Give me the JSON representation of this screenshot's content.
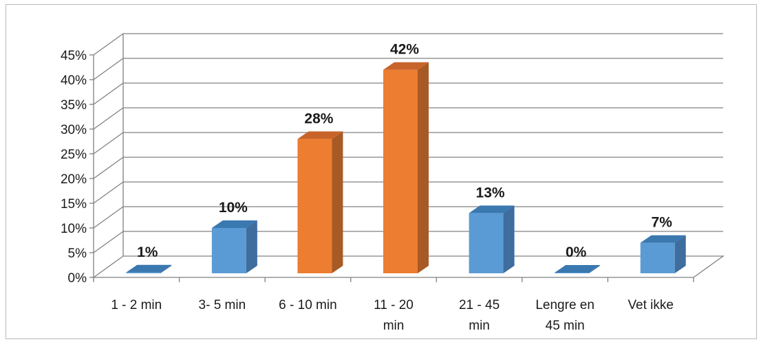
{
  "chart_data": {
    "type": "bar",
    "title": "",
    "xlabel": "",
    "ylabel": "",
    "ylim": [
      0,
      45
    ],
    "y_ticks": [
      0,
      5,
      10,
      15,
      20,
      25,
      30,
      35,
      40,
      45
    ],
    "y_tick_format": "percent",
    "grid": true,
    "legend": "none",
    "three_d": true,
    "categories": [
      [
        "1 - 2 min"
      ],
      [
        "3- 5 min"
      ],
      [
        "6 - 10 min"
      ],
      [
        "11 - 20",
        "min"
      ],
      [
        "21 - 45",
        "min"
      ],
      [
        "Lengre en",
        "45 min"
      ],
      [
        "Vet ikke"
      ]
    ],
    "values": [
      1,
      10,
      28,
      42,
      13,
      0,
      7
    ],
    "data_labels": [
      "1%",
      "10%",
      "28%",
      "42%",
      "13%",
      "0%",
      "7%"
    ],
    "highlighted": [
      false,
      false,
      true,
      true,
      false,
      false,
      false
    ],
    "colors": {
      "default_front": "#5b9bd5",
      "default_top": "#3a78b0",
      "default_side": "#3e6d9e",
      "highlight_front": "#ed7d31",
      "highlight_top": "#c8642a",
      "highlight_side": "#a85a24",
      "gridline": "#808080",
      "axis": "#808080"
    }
  }
}
